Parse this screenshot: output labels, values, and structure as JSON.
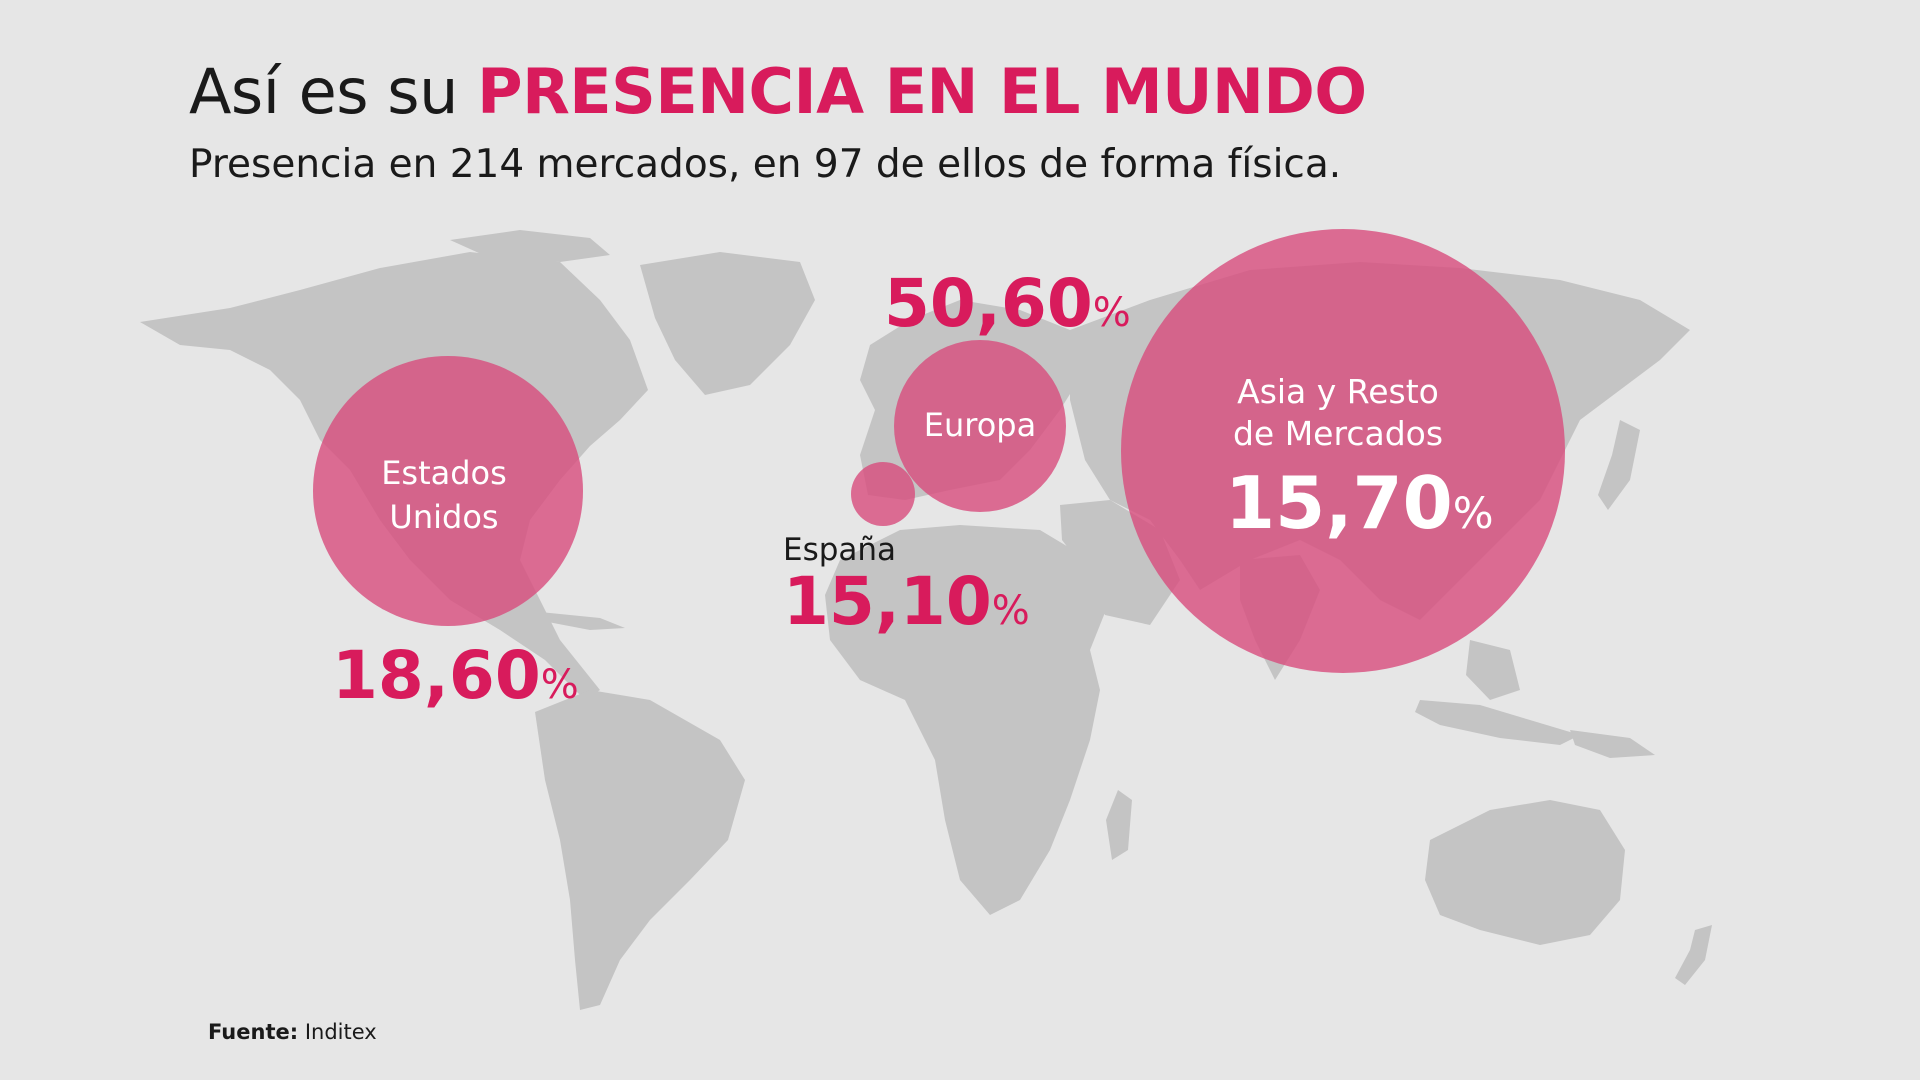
{
  "title": {
    "prefix": "Así es su",
    "highlight": "PRESENCIA EN EL MUNDO"
  },
  "subtitle": "Presencia en 214 mercados, en 97 de ellos de forma física.",
  "source": {
    "label": "Fuente:",
    "value": "Inditex"
  },
  "colors": {
    "accent": "#d81b5c",
    "bubble": "#d84f7f",
    "land": "#c4c4c4",
    "background": "#e6e6e6"
  },
  "regions": [
    {
      "key": "estados-unidos",
      "name_lines": [
        "Estados",
        "Unidos"
      ],
      "value": "18,60",
      "unit": "%"
    },
    {
      "key": "europa",
      "name_lines": [
        "Europa"
      ],
      "value": "50,60",
      "unit": "%"
    },
    {
      "key": "espana",
      "name_lines": [
        "España"
      ],
      "value": "15,10",
      "unit": "%"
    },
    {
      "key": "asia",
      "name_lines": [
        "Asia y Resto",
        "de Mercados"
      ],
      "value": "15,70",
      "unit": "%"
    }
  ]
}
